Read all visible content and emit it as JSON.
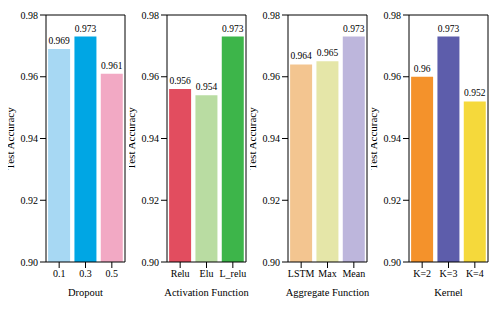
{
  "chart_data": [
    {
      "type": "bar",
      "x_label": "Dropout",
      "y_label": "Test Accuracy",
      "categories": [
        "0.1",
        "0.3",
        "0.5"
      ],
      "values": [
        0.969,
        0.973,
        0.961
      ],
      "colors": [
        "#a7d8f3",
        "#00a6e4",
        "#f2a9c4"
      ],
      "ylim": [
        0.9,
        0.98
      ],
      "yticks": [
        {
          "value": 0.9,
          "label": "0.90"
        },
        0.92,
        0.94,
        0.96,
        0.98
      ],
      "data_labels": true
    },
    {
      "type": "bar",
      "x_label": "Activation Function",
      "y_label": "Test Accuracy",
      "categories": [
        "Relu",
        "Elu",
        "L_relu"
      ],
      "values": [
        0.956,
        0.954,
        0.973
      ],
      "colors": [
        "#e24d5f",
        "#b9dca2",
        "#3db54a"
      ],
      "ylim": [
        0.9,
        0.98
      ],
      "yticks": [
        {
          "value": 0.9,
          "label": "0.90"
        },
        0.92,
        0.94,
        0.96,
        0.98
      ],
      "data_labels": true
    },
    {
      "type": "bar",
      "x_label": "Aggregate Function",
      "y_label": "Test Accuracy",
      "categories": [
        "LSTM",
        "Max",
        "Mean"
      ],
      "values": [
        0.964,
        0.965,
        0.973
      ],
      "colors": [
        "#f3c590",
        "#e5e6a8",
        "#bdb6dc"
      ],
      "ylim": [
        0.9,
        0.98
      ],
      "yticks": [
        {
          "value": 0.9,
          "label": "0.90"
        },
        0.92,
        0.94,
        0.96,
        0.98
      ],
      "data_labels": true
    },
    {
      "type": "bar",
      "x_label": "Kernel",
      "y_label": "Test Accuracy",
      "categories": [
        "K=2",
        "K=3",
        "K=4"
      ],
      "values": [
        0.96,
        0.973,
        0.952
      ],
      "colors": [
        "#f4922b",
        "#5d5dab",
        "#f5d93b"
      ],
      "ylim": [
        0.9,
        0.98
      ],
      "yticks": [
        {
          "value": 0.9,
          "label": "0.90"
        },
        0.92,
        0.94,
        0.96,
        0.98
      ],
      "data_labels": true
    }
  ]
}
